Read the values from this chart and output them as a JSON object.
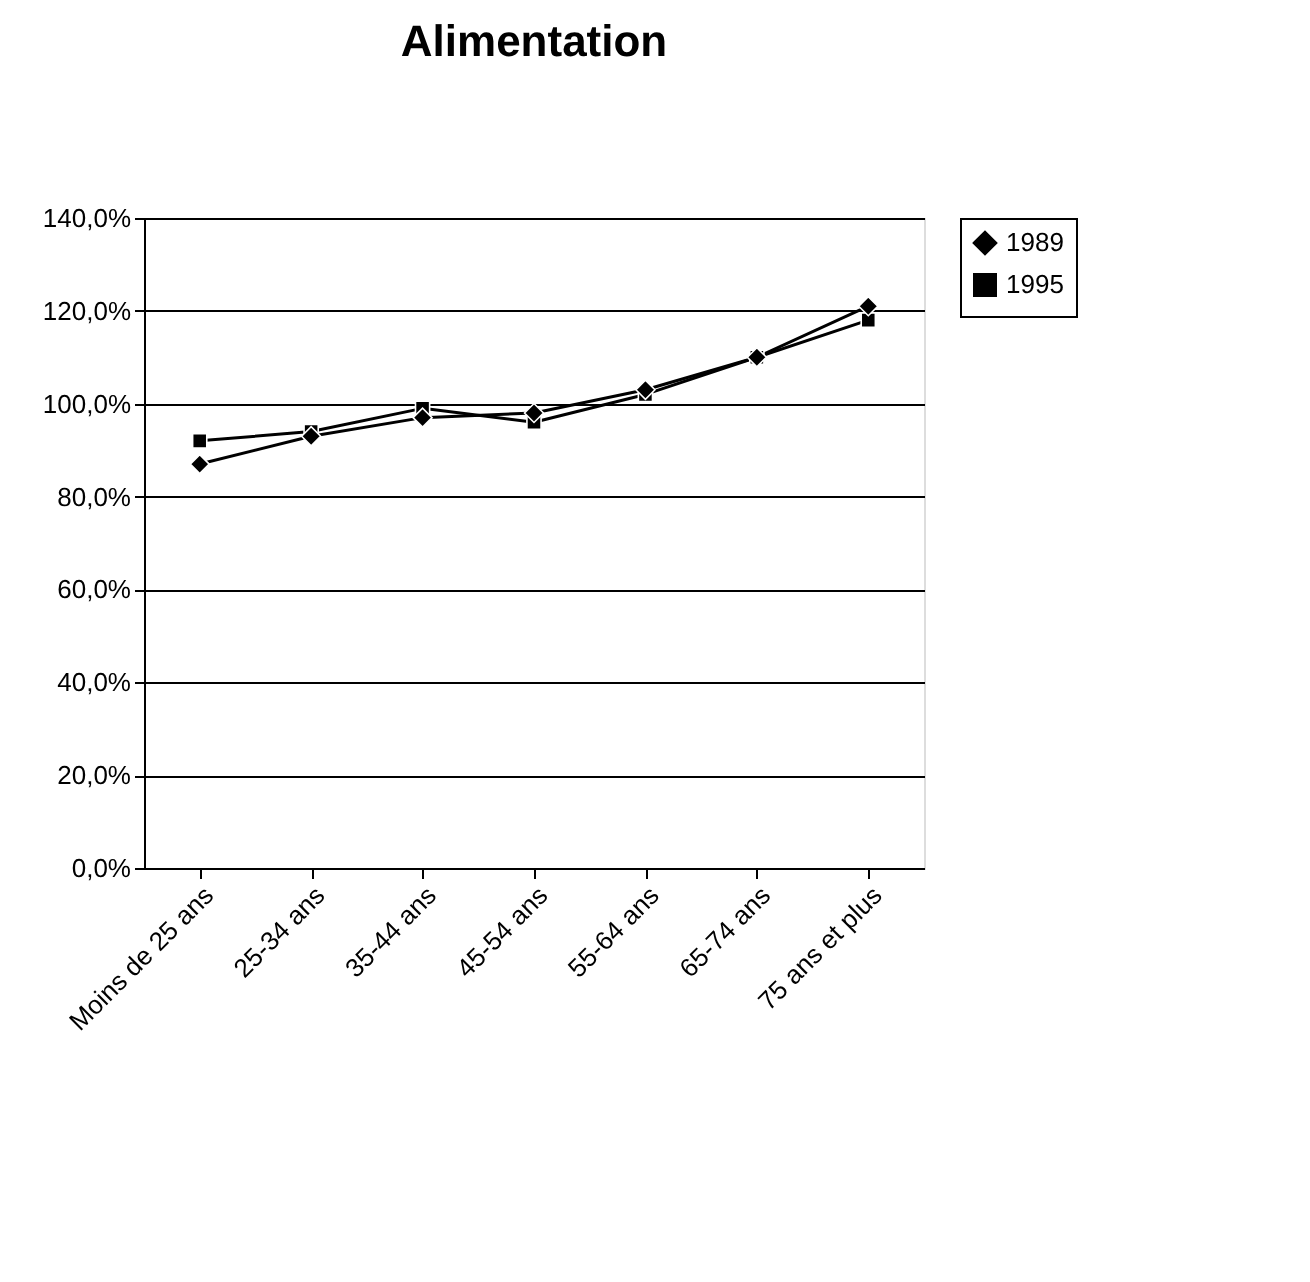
{
  "chart_data": {
    "type": "line",
    "title": "Alimentation",
    "categories": [
      "Moins de 25 ans",
      "25-34 ans",
      "35-44 ans",
      "45-54 ans",
      "55-64 ans",
      "65-74 ans",
      "75 ans et plus"
    ],
    "series": [
      {
        "name": "1989",
        "color": "#000000",
        "marker": "diamond",
        "values": [
          87,
          93,
          97,
          98,
          103,
          110,
          121
        ]
      },
      {
        "name": "1995",
        "color": "#000000",
        "marker": "square",
        "values": [
          92,
          94,
          99,
          96,
          102,
          110,
          118
        ]
      }
    ],
    "ylim": [
      0,
      140
    ],
    "yticks": [
      {
        "value": 0,
        "label": "0,0%"
      },
      {
        "value": 20,
        "label": "20,0%"
      },
      {
        "value": 40,
        "label": "40,0%"
      },
      {
        "value": 60,
        "label": "60,0%"
      },
      {
        "value": 80,
        "label": "80,0%"
      },
      {
        "value": 100,
        "label": "100,0%"
      },
      {
        "value": 120,
        "label": "120,0%"
      },
      {
        "value": 140,
        "label": "140,0%"
      }
    ],
    "grid": "y",
    "legend": "right",
    "line_style": "solid"
  }
}
